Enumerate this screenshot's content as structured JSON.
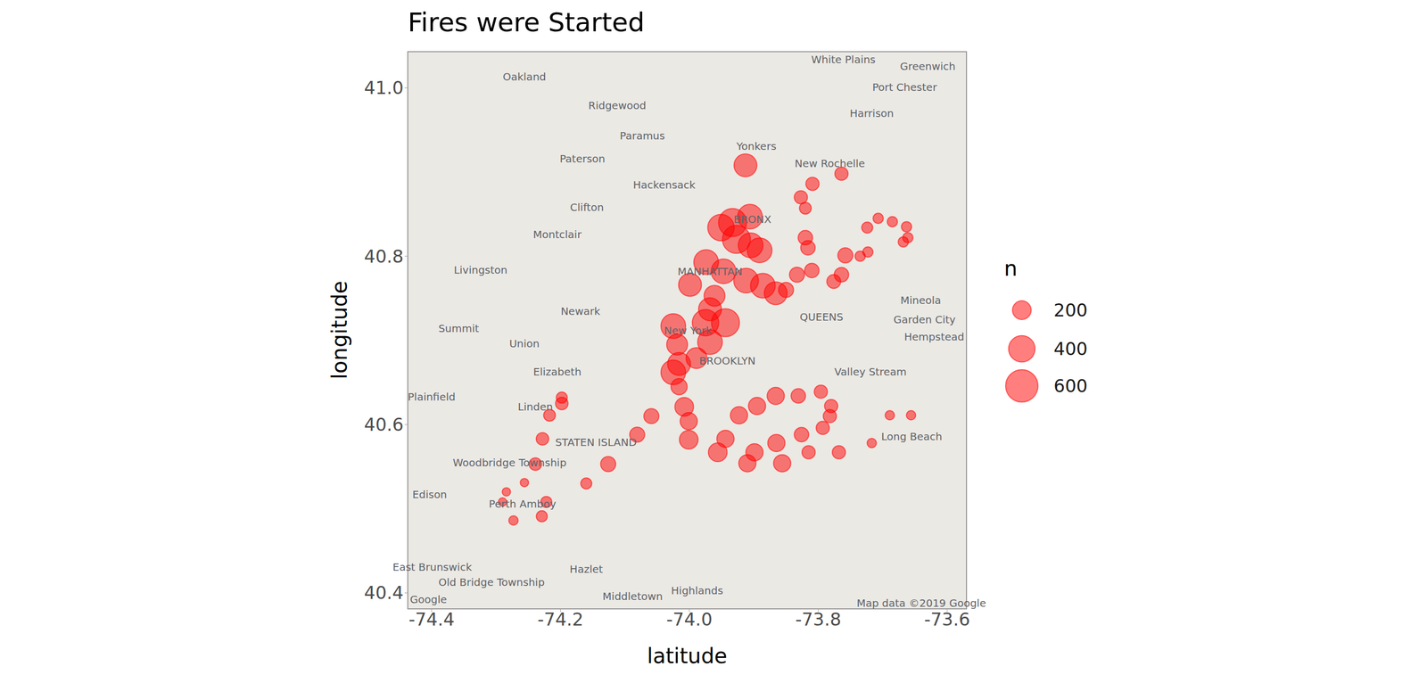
{
  "chart_data": {
    "type": "scatter",
    "title": "Fires were Started",
    "x_label": "latitude",
    "y_label": "longitude",
    "size_label": "n",
    "size_legend": [
      200,
      400,
      600
    ],
    "color": "#ff0000",
    "marker": "circle",
    "xlim": [
      -74.437,
      -73.57
    ],
    "ylim": [
      40.381,
      41.043
    ],
    "xticks": [
      -74.4,
      -74.2,
      {
        "value": -74,
        "label": "-74.0"
      },
      -73.8,
      -73.6
    ],
    "yticks": [
      40.4,
      40.6,
      40.8,
      {
        "value": 41,
        "label": "41.0"
      }
    ],
    "grid": false,
    "x": [
      -73.913,
      -73.764,
      -73.809,
      -73.827,
      -73.82,
      -73.906,
      -73.933,
      -73.951,
      -73.927,
      -73.905,
      -73.891,
      -73.82,
      -73.816,
      -73.81,
      -73.833,
      -73.758,
      -73.724,
      -73.707,
      -73.685,
      -73.663,
      -73.661,
      -73.668,
      -73.735,
      -73.723,
      -73.764,
      -73.776,
      -73.974,
      -73.947,
      -73.912,
      -73.886,
      -73.866,
      -73.85,
      -73.999,
      -73.961,
      -73.968,
      -73.944,
      -73.975,
      -74.025,
      -73.968,
      -74.019,
      -73.989,
      -74.016,
      -74.025,
      -74.016,
      -74.008,
      -74.001,
      -74.001,
      -74.059,
      -74.081,
      -74.126,
      -74.16,
      -74.222,
      -74.229,
      -74.239,
      -74.228,
      -74.217,
      -74.198,
      -74.198,
      -74.256,
      -74.284,
      -74.273,
      -74.29,
      -73.956,
      -73.944,
      -73.923,
      -73.895,
      -73.866,
      -73.831,
      -73.899,
      -73.91,
      -73.865,
      -73.856,
      -73.826,
      -73.815,
      -73.793,
      -73.782,
      -73.78,
      -73.796,
      -73.768,
      -73.717,
      -73.689,
      -73.656
    ],
    "y": [
      40.908,
      40.898,
      40.886,
      40.87,
      40.857,
      40.847,
      40.84,
      40.834,
      40.82,
      40.813,
      40.807,
      40.822,
      40.81,
      40.783,
      40.778,
      40.801,
      40.834,
      40.845,
      40.841,
      40.835,
      40.822,
      40.817,
      40.8,
      40.805,
      40.778,
      40.77,
      40.793,
      40.782,
      40.771,
      40.765,
      40.756,
      40.76,
      40.766,
      40.753,
      40.737,
      40.721,
      40.721,
      40.717,
      40.698,
      40.695,
      40.679,
      40.672,
      40.662,
      40.645,
      40.621,
      40.604,
      40.582,
      40.61,
      40.588,
      40.553,
      40.53,
      40.508,
      40.491,
      40.553,
      40.583,
      40.611,
      40.625,
      40.632,
      40.531,
      40.52,
      40.486,
      40.508,
      40.567,
      40.583,
      40.611,
      40.622,
      40.634,
      40.634,
      40.567,
      40.554,
      40.578,
      40.554,
      40.588,
      40.567,
      40.596,
      40.61,
      40.622,
      40.639,
      40.567,
      40.578,
      40.611,
      40.611
    ],
    "n": [
      300,
      100,
      100,
      100,
      80,
      350,
      450,
      400,
      450,
      350,
      350,
      120,
      120,
      120,
      130,
      130,
      70,
      60,
      60,
      60,
      60,
      60,
      60,
      60,
      120,
      110,
      350,
      350,
      350,
      350,
      300,
      130,
      300,
      250,
      300,
      450,
      400,
      350,
      350,
      250,
      250,
      300,
      350,
      150,
      200,
      170,
      200,
      130,
      130,
      130,
      70,
      70,
      70,
      90,
      90,
      80,
      90,
      70,
      40,
      40,
      50,
      40,
      200,
      170,
      170,
      170,
      170,
      120,
      170,
      170,
      170,
      170,
      120,
      100,
      100,
      100,
      100,
      100,
      100,
      50,
      50,
      50
    ],
    "annotations": [
      {
        "text": "White Plains",
        "x": -73.761,
        "y": 41.034
      },
      {
        "text": "Greenwich",
        "x": -73.63,
        "y": 41.026
      },
      {
        "text": "Port Chester",
        "x": -73.666,
        "y": 41.001
      },
      {
        "text": "Harrison",
        "x": -73.717,
        "y": 40.97
      },
      {
        "text": "Yonkers",
        "x": -73.896,
        "y": 40.931
      },
      {
        "text": "New Rochelle",
        "x": -73.782,
        "y": 40.91
      },
      {
        "text": "Oakland",
        "x": -74.256,
        "y": 41.013
      },
      {
        "text": "Ridgewood",
        "x": -74.112,
        "y": 40.979
      },
      {
        "text": "Paramus",
        "x": -74.073,
        "y": 40.943
      },
      {
        "text": "Paterson",
        "x": -74.166,
        "y": 40.916
      },
      {
        "text": "Hackensack",
        "x": -74.039,
        "y": 40.885
      },
      {
        "text": "Clifton",
        "x": -74.159,
        "y": 40.858
      },
      {
        "text": "BRONX",
        "x": -73.902,
        "y": 40.844
      },
      {
        "text": "Montclair",
        "x": -74.205,
        "y": 40.826
      },
      {
        "text": "Livingston",
        "x": -74.324,
        "y": 40.784
      },
      {
        "text": "MANHATTAN",
        "x": -73.968,
        "y": 40.782
      },
      {
        "text": "Mineola",
        "x": -73.641,
        "y": 40.748
      },
      {
        "text": "Newark",
        "x": -74.169,
        "y": 40.735
      },
      {
        "text": "QUEENS",
        "x": -73.795,
        "y": 40.728
      },
      {
        "text": "Garden City",
        "x": -73.635,
        "y": 40.725
      },
      {
        "text": "Summit",
        "x": -74.358,
        "y": 40.714
      },
      {
        "text": "New York",
        "x": -74.002,
        "y": 40.712
      },
      {
        "text": "Hempstead",
        "x": -73.62,
        "y": 40.704
      },
      {
        "text": "Union",
        "x": -74.256,
        "y": 40.696
      },
      {
        "text": "BROOKLYN",
        "x": -73.941,
        "y": 40.676
      },
      {
        "text": "Elizabeth",
        "x": -74.205,
        "y": 40.663
      },
      {
        "text": "Valley Stream",
        "x": -73.719,
        "y": 40.663
      },
      {
        "text": "Plainfield",
        "x": -74.4,
        "y": 40.633
      },
      {
        "text": "Linden",
        "x": -74.239,
        "y": 40.621
      },
      {
        "text": "Long Beach",
        "x": -73.655,
        "y": 40.586
      },
      {
        "text": "STATEN ISLAND",
        "x": -74.145,
        "y": 40.579
      },
      {
        "text": "Woodbridge Township",
        "x": -74.279,
        "y": 40.555
      },
      {
        "text": "Edison",
        "x": -74.403,
        "y": 40.517
      },
      {
        "text": "Perth Amboy",
        "x": -74.259,
        "y": 40.506
      },
      {
        "text": "East Brunswick",
        "x": -74.399,
        "y": 40.431
      },
      {
        "text": "Hazlet",
        "x": -74.16,
        "y": 40.428
      },
      {
        "text": "Old Bridge Township",
        "x": -74.307,
        "y": 40.413
      },
      {
        "text": "Highlands",
        "x": -73.988,
        "y": 40.403
      },
      {
        "text": "Middletown",
        "x": -74.088,
        "y": 40.396
      },
      {
        "text": "Google",
        "x": -74.405,
        "y": 40.392
      },
      {
        "text": "Map data ©2019 Google",
        "x": -73.64,
        "y": 40.388
      }
    ]
  }
}
